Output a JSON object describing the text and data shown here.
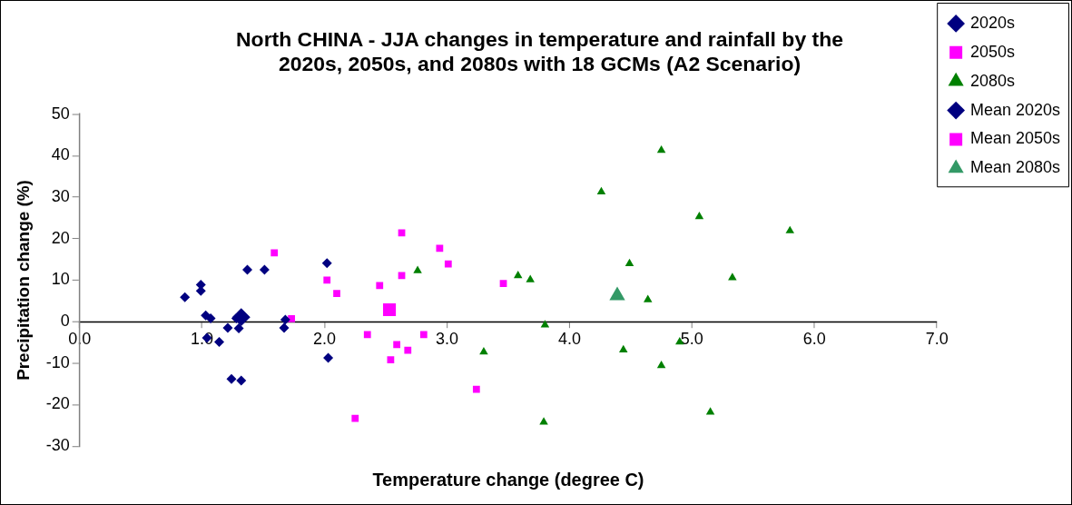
{
  "chart_data": {
    "type": "scatter",
    "title": "North CHINA - JJA changes in temperature and rainfall by the 2020s, 2050s, and 2080s with 18 GCMs (A2 Scenario)",
    "xlabel": "Temperature change (degree C)",
    "ylabel": "Precipitation change (%)",
    "xlim": [
      0,
      7
    ],
    "xticks": [
      {
        "value": 0,
        "label": "0.0"
      },
      {
        "value": 1,
        "label": "1.0"
      },
      {
        "value": 2,
        "label": "2.0"
      },
      {
        "value": 3,
        "label": "3.0"
      },
      {
        "value": 4,
        "label": "4.0"
      },
      {
        "value": 5,
        "label": "5.0"
      },
      {
        "value": 6,
        "label": "6.0"
      },
      {
        "value": 7,
        "label": "7.0"
      }
    ],
    "ylim": [
      -30,
      50
    ],
    "yticks": [
      -30,
      -20,
      -10,
      0,
      10,
      20,
      30,
      40,
      50
    ],
    "grid": false,
    "legend": "top right",
    "series": [
      {
        "name": "2020s",
        "color": "#000080",
        "marker": "diamond",
        "x": [
          0.86,
          0.99,
          0.99,
          1.03,
          1.07,
          1.04,
          1.14,
          1.21,
          1.24,
          1.32,
          1.3,
          1.28,
          1.37,
          1.51,
          1.67,
          1.68,
          2.02,
          2.03
        ],
        "values": [
          5.9,
          8.9,
          7.4,
          1.5,
          0.8,
          -3.9,
          -4.9,
          -1.5,
          -13.8,
          -14.2,
          -1.6,
          0.8,
          12.5,
          12.5,
          -1.5,
          0.5,
          14.1,
          -8.7
        ]
      },
      {
        "name": "2050s",
        "color": "#ff00ff",
        "marker": "square",
        "x": [
          1.59,
          1.73,
          2.02,
          2.1,
          2.25,
          2.35,
          2.45,
          2.54,
          2.59,
          2.63,
          2.63,
          2.68,
          2.81,
          2.94,
          3.01,
          3.24,
          3.46
        ],
        "values": [
          16.6,
          0.7,
          10,
          6.8,
          -23.3,
          -3.1,
          8.7,
          -9.2,
          -5.5,
          21.4,
          11.1,
          -6.9,
          -3.1,
          17.7,
          13.9,
          -16.3,
          9.2
        ]
      },
      {
        "name": "2080s",
        "color": "#008000",
        "marker": "triangle",
        "x": [
          2.76,
          3.3,
          3.58,
          3.68,
          3.8,
          3.79,
          4.26,
          4.44,
          4.49,
          4.64,
          4.75,
          4.75,
          4.9,
          5.06,
          5.15,
          5.33,
          5.8
        ],
        "values": [
          12.3,
          -7.3,
          11.1,
          10.1,
          -0.8,
          -24.2,
          31.3,
          -6.8,
          14,
          5.3,
          41.3,
          -10.6,
          -4.9,
          25.3,
          -21.8,
          10.6,
          21.9
        ]
      },
      {
        "name": "Mean 2020s",
        "color": "#000080",
        "marker": "diamond",
        "x": [
          1.32
        ],
        "values": [
          1.1
        ]
      },
      {
        "name": "Mean 2050s",
        "color": "#ff00ff",
        "marker": "square",
        "x": [
          2.53
        ],
        "values": [
          2.9
        ]
      },
      {
        "name": "Mean 2080s",
        "color": "#339966",
        "marker": "triangle",
        "x": [
          4.39
        ],
        "values": [
          6.3
        ]
      }
    ]
  }
}
